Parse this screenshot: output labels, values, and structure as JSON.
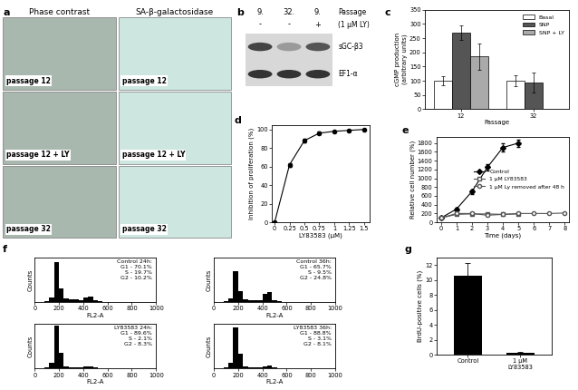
{
  "micrographs": {
    "label": "a",
    "columns": [
      "Phase contrast",
      "SA-β-galactosidase"
    ],
    "rows": [
      "passage 12",
      "passage 12 + LY",
      "passage 32"
    ]
  },
  "blot": {
    "label": "b",
    "lanes": [
      "9.",
      "32.",
      "9."
    ],
    "lanes_title": "Passage",
    "treatment": [
      "-",
      "-",
      "+"
    ],
    "treatment_title": "(1 μM LY)",
    "bands": [
      "sGC-β3",
      "EF1-α"
    ]
  },
  "chart_data": [
    {
      "label": "c",
      "type": "bar",
      "categories": [
        "12",
        "32"
      ],
      "x_label": "Passage",
      "y_label": "cGMP production\n(arbitrary units)",
      "ylim": [
        0,
        350
      ],
      "yticks": [
        0,
        50,
        100,
        150,
        200,
        250,
        300,
        350
      ],
      "legend": "upper right",
      "series": [
        {
          "name": "Basal",
          "color": "#ffffff",
          "values": [
            100,
            100
          ],
          "errors": [
            15,
            20
          ]
        },
        {
          "name": "SNP",
          "color": "#555555",
          "values": [
            270,
            95
          ],
          "errors": [
            25,
            35
          ]
        },
        {
          "name": "SNP + LY",
          "color": "#aaaaaa",
          "values": [
            185,
            null
          ],
          "errors": [
            45,
            null
          ]
        }
      ]
    },
    {
      "label": "d",
      "type": "line",
      "x": [
        0,
        0.25,
        0.5,
        0.75,
        1,
        1.25,
        1.5
      ],
      "values": [
        0,
        62,
        88,
        96,
        98,
        99,
        100
      ],
      "errors": [
        0,
        2,
        2,
        1.5,
        1,
        1,
        1
      ],
      "color": "#000000",
      "marker": "circle",
      "x_label": "LY83583 (μM)",
      "y_label": "Inhibition of proliferation (%)",
      "xlim": [
        -0.05,
        1.6
      ],
      "xticks": [
        0,
        0.25,
        0.5,
        0.75,
        1,
        1.25,
        1.5
      ],
      "ylim": [
        0,
        105
      ],
      "yticks": [
        0,
        20,
        40,
        60,
        80,
        100
      ]
    },
    {
      "label": "e",
      "type": "line",
      "x_label": "Time (days)",
      "y_label": "Relative cell number (%)",
      "xlim": [
        -0.3,
        8.3
      ],
      "xticks": [
        0,
        1,
        2,
        3,
        4,
        5,
        6,
        7,
        8
      ],
      "ylim": [
        0,
        1950
      ],
      "yticks": [
        0,
        200,
        400,
        600,
        800,
        1000,
        1200,
        1400,
        1600,
        1800
      ],
      "legend": "center right",
      "series": [
        {
          "name": "Control",
          "color": "#000000",
          "marker": "diamond",
          "x": [
            0,
            1,
            2,
            3,
            4,
            5
          ],
          "values": [
            100,
            300,
            700,
            1250,
            1700,
            1800
          ],
          "errors": [
            0,
            30,
            50,
            70,
            90,
            80
          ]
        },
        {
          "name": "1 μM LY83583",
          "color": "#555555",
          "marker": "square-open",
          "x": [
            0,
            1,
            2,
            3,
            4,
            5
          ],
          "values": [
            100,
            180,
            190,
            190,
            180,
            190
          ],
          "errors": [
            0,
            20,
            20,
            20,
            20,
            20
          ]
        },
        {
          "name": "1 μM Ly removed after 48 h",
          "color": "#555555",
          "marker": "circle-open",
          "x": [
            0,
            1,
            2,
            3,
            4,
            5,
            6,
            7,
            8
          ],
          "values": [
            100,
            200,
            200,
            160,
            180,
            200,
            200,
            200,
            210
          ],
          "errors": [
            0,
            20,
            20,
            20,
            20,
            20,
            20,
            20,
            20
          ]
        }
      ]
    },
    {
      "label": "f",
      "type": "histogram",
      "title": "Control 24h:",
      "annotations": [
        "G1 - 70.1%",
        "S - 19.7%",
        "G2 - 10.2%"
      ],
      "bins": [
        0,
        40,
        80,
        120,
        160,
        200,
        240,
        280,
        320,
        360,
        400,
        440,
        480,
        520,
        560,
        600,
        640,
        680,
        720,
        760,
        800,
        840,
        880,
        920,
        960,
        1000
      ],
      "counts": [
        0,
        0,
        2,
        10,
        90,
        30,
        8,
        6,
        6,
        5,
        10,
        12,
        4,
        2,
        1,
        0,
        0,
        0,
        0,
        0,
        0,
        0,
        0,
        0,
        0
      ],
      "x_label": "FL2-A",
      "y_label": "Counts",
      "xlim": [
        0,
        1000
      ],
      "xticks": [
        0,
        200,
        400,
        600,
        800,
        1000
      ],
      "ylim": [
        0,
        100
      ],
      "tick_labels": "x",
      "color": "#000000"
    },
    {
      "type": "histogram",
      "title": "Control 36h:",
      "annotations": [
        "G1 - 65.7%",
        "S - 9.5%",
        "G2 - 24.8%"
      ],
      "bins": [
        0,
        40,
        80,
        120,
        160,
        200,
        240,
        280,
        320,
        360,
        400,
        440,
        480,
        520,
        560,
        600,
        640,
        680,
        720,
        760,
        800,
        840,
        880,
        920,
        960,
        1000
      ],
      "counts": [
        0,
        0,
        2,
        8,
        70,
        25,
        6,
        4,
        4,
        4,
        18,
        22,
        5,
        2,
        1,
        0,
        0,
        0,
        0,
        0,
        0,
        0,
        0,
        0,
        0
      ],
      "x_label": "FL2-A",
      "y_label": "Counts",
      "xlim": [
        0,
        1000
      ],
      "xticks": [
        0,
        200,
        400,
        600,
        800,
        1000
      ],
      "ylim": [
        0,
        100
      ],
      "tick_labels": "x",
      "color": "#000000"
    },
    {
      "type": "histogram",
      "title": "LY83583 24h:",
      "annotations": [
        "G1 - 89.6%",
        "S - 2.1%",
        "G2 - 8.3%"
      ],
      "bins": [
        0,
        40,
        80,
        120,
        160,
        200,
        240,
        280,
        320,
        360,
        400,
        440,
        480,
        520,
        560,
        600,
        640,
        680,
        720,
        760,
        800,
        840,
        880,
        920,
        960,
        1000
      ],
      "counts": [
        0,
        0,
        3,
        12,
        95,
        35,
        5,
        2,
        2,
        2,
        4,
        5,
        2,
        1,
        0,
        0,
        0,
        0,
        0,
        0,
        0,
        0,
        0,
        0,
        0
      ],
      "x_label": "FL2-A",
      "y_label": "Counts",
      "xlim": [
        0,
        1000
      ],
      "xticks": [
        0,
        200,
        400,
        600,
        800,
        1000
      ],
      "ylim": [
        0,
        100
      ],
      "tick_labels": "x",
      "color": "#000000"
    },
    {
      "type": "histogram",
      "title": "LY83583 36h:",
      "annotations": [
        "G1 - 88.8%",
        "S - 3.1%",
        "G2 - 8.1%"
      ],
      "bins": [
        0,
        40,
        80,
        120,
        160,
        200,
        240,
        280,
        320,
        360,
        400,
        440,
        480,
        520,
        560,
        600,
        640,
        680,
        720,
        760,
        800,
        840,
        880,
        920,
        960,
        1000
      ],
      "counts": [
        0,
        0,
        3,
        12,
        92,
        34,
        5,
        2,
        2,
        2,
        4,
        6,
        2,
        1,
        0,
        0,
        0,
        0,
        0,
        0,
        0,
        0,
        0,
        0,
        0
      ],
      "x_label": "FL2-A",
      "y_label": "Counts",
      "xlim": [
        0,
        1000
      ],
      "xticks": [
        0,
        200,
        400,
        600,
        800,
        1000
      ],
      "ylim": [
        0,
        100
      ],
      "tick_labels": "x",
      "color": "#000000"
    },
    {
      "label": "g",
      "type": "bar",
      "categories": [
        "Control",
        "1 μM\nLY83583"
      ],
      "values": [
        10.5,
        0.3
      ],
      "errors": [
        1.7,
        0.1
      ],
      "color": "#000000",
      "y_label": "BrdU-positive cells (%)",
      "ylim": [
        0,
        13
      ],
      "yticks": [
        0,
        2,
        4,
        6,
        8,
        10,
        12
      ]
    }
  ]
}
